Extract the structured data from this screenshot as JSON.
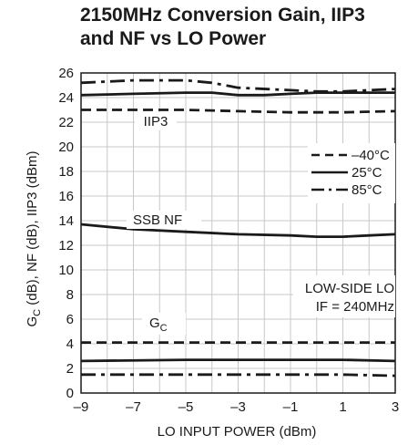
{
  "chart_data": {
    "type": "line",
    "title_lines": [
      "2150MHz Conversion Gain, IIP3",
      "and NF vs LO Power"
    ],
    "xlabel": "LO INPUT POWER (dBm)",
    "ylabel_parts": {
      "g": "G",
      "sub": "C",
      "rest": " (dB), NF (dB), IIP3 (dBm)"
    },
    "xlim": [
      -9,
      3
    ],
    "ylim": [
      0,
      26
    ],
    "xticks": [
      -9,
      -7,
      -5,
      -3,
      -1,
      1,
      3
    ],
    "xtick_labels": [
      "–9",
      "–7",
      "–5",
      "–3",
      "–1",
      "1",
      "3"
    ],
    "yticks": [
      0,
      2,
      4,
      6,
      8,
      10,
      12,
      14,
      16,
      18,
      20,
      22,
      24,
      26
    ],
    "grid": true,
    "legend": {
      "placement": "right",
      "entries": [
        {
          "label": "–40°C",
          "style": "dashed"
        },
        {
          "label": "25°C",
          "style": "solid"
        },
        {
          "label": "85°C",
          "style": "dashdot"
        }
      ]
    },
    "annotations": {
      "iip3": "IIP3",
      "ssbnf": "SSB NF",
      "gc_main": "G",
      "gc_sub": "C",
      "lowside_line1": "LOW-SIDE LO",
      "lowside_line2": "IF = 240MHz"
    },
    "series": [
      {
        "group": "IIP3",
        "temp": "–40°C",
        "style": "dashed",
        "x": [
          -9,
          -5,
          -3,
          -1,
          1,
          3
        ],
        "y": [
          23.0,
          23.0,
          22.9,
          22.8,
          22.8,
          22.9
        ]
      },
      {
        "group": "IIP3",
        "temp": "25°C",
        "style": "solid",
        "x": [
          -9,
          -7,
          -5,
          -4,
          -3,
          -2,
          -1,
          0,
          1,
          2,
          3
        ],
        "y": [
          24.2,
          24.3,
          24.4,
          24.4,
          24.2,
          24.2,
          24.3,
          24.4,
          24.4,
          24.4,
          24.4
        ]
      },
      {
        "group": "IIP3",
        "temp": "85°C",
        "style": "dashdot",
        "x": [
          -9,
          -7,
          -5,
          -4,
          -3,
          -1,
          0,
          1,
          2,
          3
        ],
        "y": [
          25.2,
          25.4,
          25.4,
          25.2,
          24.8,
          24.6,
          24.5,
          24.5,
          24.6,
          24.7
        ]
      },
      {
        "group": "SSB NF",
        "temp": "25°C",
        "style": "solid",
        "x": [
          -9,
          -7,
          -5,
          -3,
          -1,
          0,
          1,
          2,
          3
        ],
        "y": [
          13.7,
          13.3,
          13.1,
          12.9,
          12.8,
          12.7,
          12.7,
          12.8,
          12.9
        ]
      },
      {
        "group": "GC",
        "temp": "–40°C",
        "style": "dashed",
        "x": [
          -9,
          3
        ],
        "y": [
          4.1,
          4.1
        ]
      },
      {
        "group": "GC",
        "temp": "25°C",
        "style": "solid",
        "x": [
          -9,
          -5,
          -1,
          1,
          3
        ],
        "y": [
          2.6,
          2.7,
          2.7,
          2.7,
          2.6
        ]
      },
      {
        "group": "GC",
        "temp": "85°C",
        "style": "dashdot",
        "x": [
          -9,
          -5,
          -1,
          1,
          3
        ],
        "y": [
          1.5,
          1.5,
          1.5,
          1.5,
          1.4
        ]
      }
    ]
  }
}
